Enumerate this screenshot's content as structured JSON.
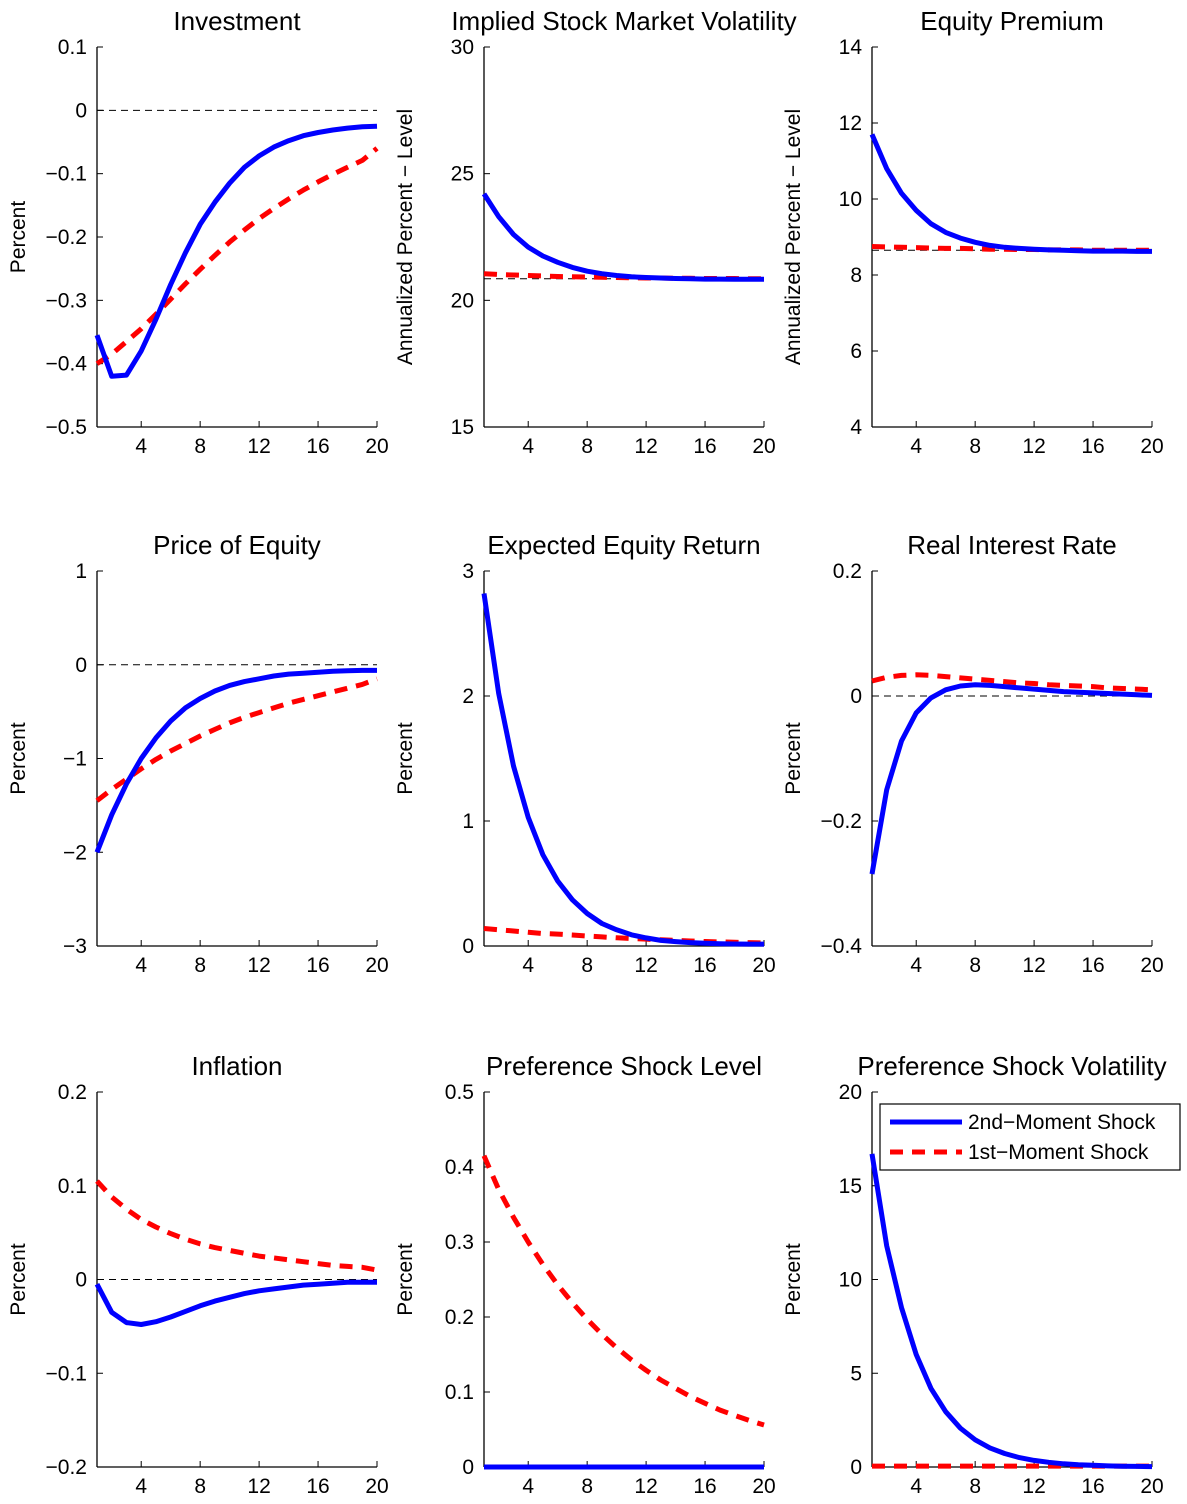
{
  "colors": {
    "second_moment": "#0000ff",
    "first_moment": "#ff0000",
    "zero_line": "#000000"
  },
  "legend": {
    "items": [
      "2nd−Moment Shock",
      "1st−Moment Shock"
    ],
    "placement": "top-right",
    "panel": 8
  },
  "chart_data": [
    {
      "type": "line",
      "title": "Investment",
      "ylabel": "Percent",
      "xlim": [
        1,
        20
      ],
      "ylim": [
        -0.5,
        0.1
      ],
      "xticks": [
        "4",
        "8",
        "12",
        "16",
        "20"
      ],
      "yticks": [
        "−0.5",
        "−0.4",
        "−0.3",
        "−0.2",
        "−0.1",
        "0",
        "0.1"
      ],
      "zero_line": 0,
      "x": [
        1,
        2,
        3,
        4,
        5,
        6,
        7,
        8,
        9,
        10,
        11,
        12,
        13,
        14,
        15,
        16,
        17,
        18,
        19,
        20
      ],
      "series": [
        {
          "name": "2nd−Moment Shock",
          "style": "solid",
          "values": [
            -0.355,
            -0.42,
            -0.418,
            -0.38,
            -0.33,
            -0.275,
            -0.225,
            -0.18,
            -0.145,
            -0.115,
            -0.09,
            -0.072,
            -0.058,
            -0.048,
            -0.04,
            -0.035,
            -0.031,
            -0.028,
            -0.026,
            -0.025
          ]
        },
        {
          "name": "1st−Moment Shock",
          "style": "dashed",
          "values": [
            -0.4,
            -0.385,
            -0.365,
            -0.345,
            -0.322,
            -0.298,
            -0.274,
            -0.251,
            -0.229,
            -0.208,
            -0.189,
            -0.171,
            -0.155,
            -0.14,
            -0.126,
            -0.113,
            -0.101,
            -0.09,
            -0.079,
            -0.06
          ]
        }
      ]
    },
    {
      "type": "line",
      "title": "Implied Stock Market Volatility",
      "ylabel": "Annualized Percent − Level",
      "xlim": [
        1,
        20
      ],
      "ylim": [
        15,
        30
      ],
      "xticks": [
        "4",
        "8",
        "12",
        "16",
        "20"
      ],
      "yticks": [
        "15",
        "20",
        "25",
        "30"
      ],
      "zero_line": 20.85,
      "x": [
        1,
        2,
        3,
        4,
        5,
        6,
        7,
        8,
        9,
        10,
        11,
        12,
        13,
        14,
        15,
        16,
        17,
        18,
        19,
        20
      ],
      "series": [
        {
          "name": "2nd−Moment Shock",
          "style": "solid",
          "values": [
            24.2,
            23.3,
            22.6,
            22.1,
            21.75,
            21.5,
            21.3,
            21.15,
            21.05,
            20.98,
            20.93,
            20.9,
            20.88,
            20.86,
            20.85,
            20.84,
            20.84,
            20.83,
            20.83,
            20.83
          ]
        },
        {
          "name": "1st−Moment Shock",
          "style": "dashed",
          "values": [
            21.05,
            21.02,
            21.0,
            20.98,
            20.96,
            20.94,
            20.93,
            20.92,
            20.91,
            20.9,
            20.89,
            20.88,
            20.88,
            20.87,
            20.87,
            20.86,
            20.86,
            20.86,
            20.85,
            20.85
          ]
        }
      ]
    },
    {
      "type": "line",
      "title": "Equity Premium",
      "ylabel": "Annualized Percent − Level",
      "xlim": [
        1,
        20
      ],
      "ylim": [
        4,
        14
      ],
      "xticks": [
        "4",
        "8",
        "12",
        "16",
        "20"
      ],
      "yticks": [
        "4",
        "6",
        "8",
        "10",
        "12",
        "14"
      ],
      "zero_line": 8.65,
      "x": [
        1,
        2,
        3,
        4,
        5,
        6,
        7,
        8,
        9,
        10,
        11,
        12,
        13,
        14,
        15,
        16,
        17,
        18,
        19,
        20
      ],
      "series": [
        {
          "name": "2nd−Moment Shock",
          "style": "solid",
          "values": [
            11.7,
            10.8,
            10.15,
            9.7,
            9.35,
            9.12,
            8.97,
            8.86,
            8.78,
            8.73,
            8.7,
            8.68,
            8.66,
            8.65,
            8.64,
            8.63,
            8.63,
            8.63,
            8.62,
            8.62
          ]
        },
        {
          "name": "1st−Moment Shock",
          "style": "dashed",
          "values": [
            8.75,
            8.74,
            8.73,
            8.72,
            8.71,
            8.7,
            8.7,
            8.69,
            8.68,
            8.68,
            8.67,
            8.67,
            8.66,
            8.66,
            8.66,
            8.65,
            8.65,
            8.65,
            8.65,
            8.65
          ]
        }
      ]
    },
    {
      "type": "line",
      "title": "Price of Equity",
      "ylabel": "Percent",
      "xlim": [
        1,
        20
      ],
      "ylim": [
        -3,
        1
      ],
      "xticks": [
        "4",
        "8",
        "12",
        "16",
        "20"
      ],
      "yticks": [
        "−3",
        "−2",
        "−1",
        "0",
        "1"
      ],
      "zero_line": 0,
      "x": [
        1,
        2,
        3,
        4,
        5,
        6,
        7,
        8,
        9,
        10,
        11,
        12,
        13,
        14,
        15,
        16,
        17,
        18,
        19,
        20
      ],
      "series": [
        {
          "name": "2nd−Moment Shock",
          "style": "solid",
          "values": [
            -2.0,
            -1.6,
            -1.27,
            -1.0,
            -0.78,
            -0.6,
            -0.46,
            -0.36,
            -0.28,
            -0.22,
            -0.18,
            -0.15,
            -0.12,
            -0.1,
            -0.09,
            -0.08,
            -0.07,
            -0.065,
            -0.06,
            -0.06
          ]
        },
        {
          "name": "1st−Moment Shock",
          "style": "dashed",
          "values": [
            -1.45,
            -1.33,
            -1.22,
            -1.11,
            -1.01,
            -0.92,
            -0.84,
            -0.76,
            -0.69,
            -0.62,
            -0.56,
            -0.51,
            -0.46,
            -0.41,
            -0.37,
            -0.33,
            -0.29,
            -0.25,
            -0.21,
            -0.15
          ]
        }
      ]
    },
    {
      "type": "line",
      "title": "Expected Equity Return",
      "ylabel": "Percent",
      "xlim": [
        1,
        20
      ],
      "ylim": [
        0,
        3
      ],
      "xticks": [
        "4",
        "8",
        "12",
        "16",
        "20"
      ],
      "yticks": [
        "0",
        "1",
        "2",
        "3"
      ],
      "zero_line": 0,
      "x": [
        1,
        2,
        3,
        4,
        5,
        6,
        7,
        8,
        9,
        10,
        11,
        12,
        13,
        14,
        15,
        16,
        17,
        18,
        19,
        20
      ],
      "series": [
        {
          "name": "2nd−Moment Shock",
          "style": "solid",
          "values": [
            2.82,
            2.02,
            1.44,
            1.03,
            0.73,
            0.52,
            0.37,
            0.26,
            0.18,
            0.13,
            0.09,
            0.065,
            0.045,
            0.035,
            0.027,
            0.022,
            0.018,
            0.016,
            0.015,
            0.015
          ]
        },
        {
          "name": "1st−Moment Shock",
          "style": "dashed",
          "values": [
            0.14,
            0.13,
            0.12,
            0.11,
            0.1,
            0.095,
            0.088,
            0.08,
            0.073,
            0.066,
            0.06,
            0.055,
            0.05,
            0.045,
            0.04,
            0.036,
            0.033,
            0.03,
            0.027,
            0.025
          ]
        }
      ]
    },
    {
      "type": "line",
      "title": "Real Interest Rate",
      "ylabel": "Percent",
      "xlim": [
        1,
        20
      ],
      "ylim": [
        -0.4,
        0.2
      ],
      "xticks": [
        "4",
        "8",
        "12",
        "16",
        "20"
      ],
      "yticks": [
        "−0.4",
        "−0.2",
        "0",
        "0.2"
      ],
      "zero_line": 0,
      "x": [
        1,
        2,
        3,
        4,
        5,
        6,
        7,
        8,
        9,
        10,
        11,
        12,
        13,
        14,
        15,
        16,
        17,
        18,
        19,
        20
      ],
      "series": [
        {
          "name": "2nd−Moment Shock",
          "style": "solid",
          "values": [
            -0.285,
            -0.15,
            -0.072,
            -0.027,
            -0.003,
            0.01,
            0.016,
            0.018,
            0.017,
            0.015,
            0.013,
            0.011,
            0.009,
            0.007,
            0.006,
            0.005,
            0.004,
            0.003,
            0.002,
            0.001
          ]
        },
        {
          "name": "1st−Moment Shock",
          "style": "dashed",
          "values": [
            0.024,
            0.03,
            0.033,
            0.034,
            0.033,
            0.031,
            0.029,
            0.027,
            0.025,
            0.023,
            0.021,
            0.02,
            0.018,
            0.017,
            0.016,
            0.015,
            0.013,
            0.012,
            0.011,
            0.01
          ]
        }
      ]
    },
    {
      "type": "line",
      "title": "Inflation",
      "ylabel": "Percent",
      "xlim": [
        1,
        20
      ],
      "ylim": [
        -0.2,
        0.2
      ],
      "xticks": [
        "4",
        "8",
        "12",
        "16",
        "20"
      ],
      "yticks": [
        "−0.2",
        "−0.1",
        "0",
        "0.1",
        "0.2"
      ],
      "zero_line": 0,
      "x": [
        1,
        2,
        3,
        4,
        5,
        6,
        7,
        8,
        9,
        10,
        11,
        12,
        13,
        14,
        15,
        16,
        17,
        18,
        19,
        20
      ],
      "series": [
        {
          "name": "2nd−Moment Shock",
          "style": "solid",
          "values": [
            -0.005,
            -0.035,
            -0.046,
            -0.048,
            -0.045,
            -0.04,
            -0.034,
            -0.028,
            -0.023,
            -0.019,
            -0.015,
            -0.012,
            -0.01,
            -0.008,
            -0.006,
            -0.005,
            -0.004,
            -0.003,
            -0.003,
            -0.003
          ]
        },
        {
          "name": "1st−Moment Shock",
          "style": "dashed",
          "values": [
            0.105,
            0.088,
            0.075,
            0.064,
            0.056,
            0.049,
            0.043,
            0.038,
            0.034,
            0.031,
            0.028,
            0.025,
            0.023,
            0.021,
            0.019,
            0.017,
            0.015,
            0.014,
            0.013,
            0.01
          ]
        }
      ]
    },
    {
      "type": "line",
      "title": "Preference Shock Level",
      "ylabel": "Percent",
      "xlim": [
        1,
        20
      ],
      "ylim": [
        0,
        0.5
      ],
      "xticks": [
        "4",
        "8",
        "12",
        "16",
        "20"
      ],
      "yticks": [
        "0",
        "0.1",
        "0.2",
        "0.3",
        "0.4",
        "0.5"
      ],
      "zero_line": null,
      "x": [
        1,
        2,
        3,
        4,
        5,
        6,
        7,
        8,
        9,
        10,
        11,
        12,
        13,
        14,
        15,
        16,
        17,
        18,
        19,
        20
      ],
      "series": [
        {
          "name": "2nd−Moment Shock",
          "style": "solid",
          "values": [
            0,
            0,
            0,
            0,
            0,
            0,
            0,
            0,
            0,
            0,
            0,
            0,
            0,
            0,
            0,
            0,
            0,
            0,
            0,
            0
          ]
        },
        {
          "name": "1st−Moment Shock",
          "style": "dashed",
          "values": [
            0.415,
            0.37,
            0.333,
            0.3,
            0.27,
            0.243,
            0.219,
            0.197,
            0.177,
            0.159,
            0.143,
            0.129,
            0.116,
            0.105,
            0.094,
            0.085,
            0.076,
            0.069,
            0.062,
            0.056
          ]
        }
      ]
    },
    {
      "type": "line",
      "title": "Preference Shock Volatility",
      "ylabel": "Percent",
      "xlim": [
        1,
        20
      ],
      "ylim": [
        0,
        20
      ],
      "xticks": [
        "4",
        "8",
        "12",
        "16",
        "20"
      ],
      "yticks": [
        "0",
        "5",
        "10",
        "15",
        "20"
      ],
      "zero_line": null,
      "x": [
        1,
        2,
        3,
        4,
        5,
        6,
        7,
        8,
        9,
        10,
        11,
        12,
        13,
        14,
        15,
        16,
        17,
        18,
        19,
        20
      ],
      "series": [
        {
          "name": "2nd−Moment Shock",
          "style": "solid",
          "values": [
            16.7,
            11.8,
            8.5,
            6.0,
            4.2,
            2.95,
            2.07,
            1.45,
            1.02,
            0.72,
            0.5,
            0.35,
            0.25,
            0.17,
            0.12,
            0.09,
            0.06,
            0.04,
            0.03,
            0.02
          ]
        },
        {
          "name": "1st−Moment Shock",
          "style": "dashed",
          "values": [
            0.05,
            0.05,
            0.05,
            0.05,
            0.05,
            0.05,
            0.05,
            0.05,
            0.05,
            0.05,
            0.05,
            0.05,
            0.05,
            0.05,
            0.05,
            0.05,
            0.05,
            0.05,
            0.05,
            0.05
          ]
        }
      ]
    }
  ]
}
